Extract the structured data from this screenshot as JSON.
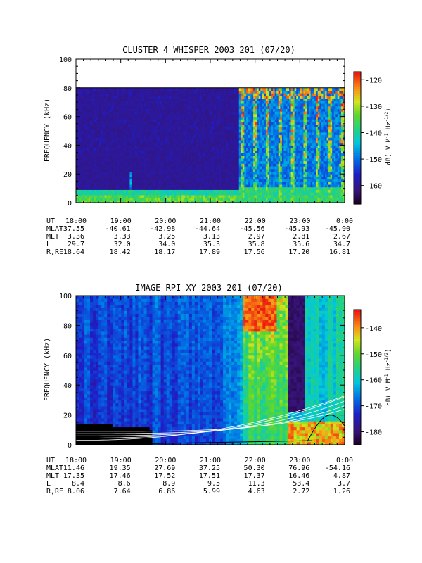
{
  "chart_data": [
    {
      "type": "heatmap",
      "title": "CLUSTER 4 WHISPER 2003 201 (07/20)",
      "ylabel": "FREQUENCY (kHz)",
      "ylim": [
        0,
        100
      ],
      "yticks": [
        "0",
        "20",
        "40",
        "60",
        "80",
        "100"
      ],
      "xticks": [
        "18:00",
        "19:00",
        "20:00",
        "21:00",
        "22:00",
        "23:00",
        "0:00"
      ],
      "colorbar": {
        "label": "dB( V M⁻¹ Hz⁻¹ᐟ²)",
        "label_main": "dB( V M",
        "label_sup1": "-1",
        "label_mid": " Hz",
        "label_sup2": "-1/2",
        "label_end": ")",
        "range": [
          -167,
          -117
        ],
        "ticks": [
          "-120",
          "-130",
          "-140",
          "-150",
          "-160"
        ]
      },
      "data_top_kHz": 80,
      "ephemeris": {
        "labels": [
          "UT",
          "MLAT",
          "MLT",
          "L",
          "R,RE"
        ],
        "rows": [
          [
            "18:00",
            "19:00",
            "20:00",
            "21:00",
            "22:00",
            "23:00",
            "0:00"
          ],
          [
            "-37.55",
            "-40.61",
            "-42.98",
            "-44.64",
            "-45.56",
            "-45.93",
            "-45.90"
          ],
          [
            "3.36",
            "3.33",
            "3.25",
            "3.13",
            "2.97",
            "2.81",
            "2.67"
          ],
          [
            "29.7",
            "32.0",
            "34.0",
            "35.3",
            "35.8",
            "35.6",
            "34.7"
          ],
          [
            "18.64",
            "18.42",
            "18.17",
            "17.89",
            "17.56",
            "17.20",
            "16.81"
          ]
        ]
      }
    },
    {
      "type": "heatmap",
      "title": "IMAGE RPI XY 2003 201 (07/20)",
      "ylabel": "FREQUENCY (kHz)",
      "ylim": [
        0,
        100
      ],
      "yticks": [
        "0",
        "20",
        "40",
        "60",
        "80",
        "100"
      ],
      "xticks": [
        "18:00",
        "19:00",
        "20:00",
        "21:00",
        "22:00",
        "23:00",
        "0:00"
      ],
      "colorbar": {
        "label_main": "dB( V M",
        "label_sup1": "-1",
        "label_mid": " Hz",
        "label_sup2": "-1/2",
        "label_end": ")",
        "range": [
          -185,
          -133
        ],
        "ticks": [
          "-140",
          "-150",
          "-160",
          "-170",
          "-180"
        ]
      },
      "ephemeris": {
        "labels": [
          "UT",
          "MLAT",
          "MLT",
          "L",
          "R,RE"
        ],
        "rows": [
          [
            "18:00",
            "19:00",
            "20:00",
            "21:00",
            "22:00",
            "23:00",
            "0:00"
          ],
          [
            "11.46",
            "19.35",
            "27.69",
            "37.25",
            "50.30",
            "76.96",
            "-54.16"
          ],
          [
            "17.35",
            "17.46",
            "17.52",
            "17.51",
            "17.37",
            "16.46",
            "4.87"
          ],
          [
            "8.4",
            "8.6",
            "8.9",
            "9.5",
            "11.3",
            "53.4",
            "3.7"
          ],
          [
            "8.06",
            "7.64",
            "6.86",
            "5.99",
            "4.63",
            "2.72",
            "1.26"
          ]
        ]
      }
    }
  ]
}
